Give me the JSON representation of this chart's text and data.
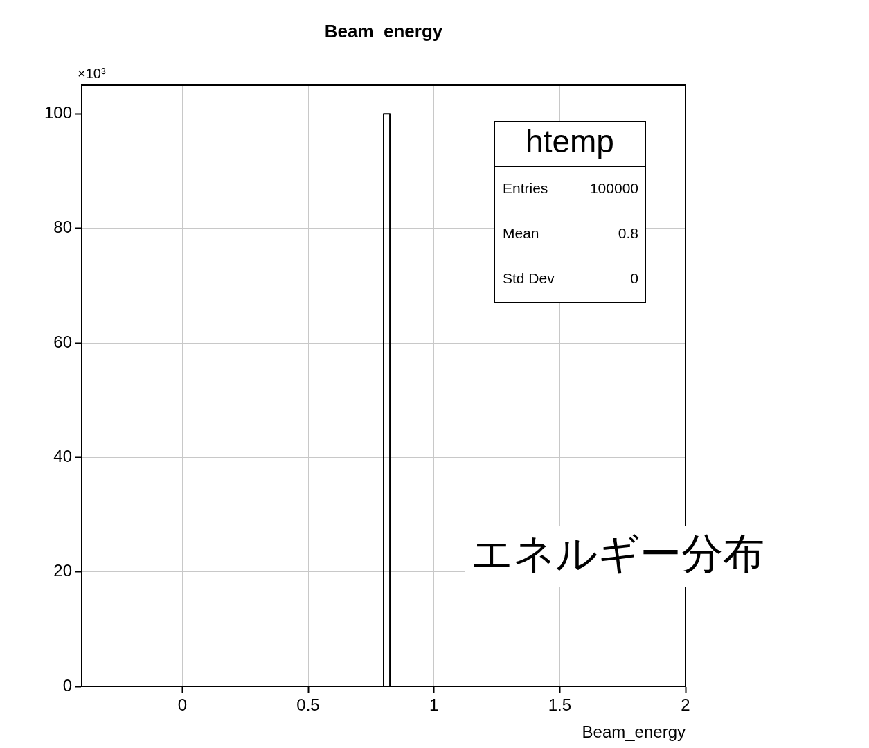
{
  "chart_data": {
    "type": "histogram",
    "title": "Beam_energy",
    "xlabel": "Beam_energy",
    "ylabel": "×10³",
    "bins": [
      0.8,
      0.825
    ],
    "values": [
      100
    ],
    "color": "#000000",
    "xlim": [
      -0.4,
      2
    ],
    "xticks": [
      0,
      0.5,
      1,
      1.5,
      2
    ],
    "ylim": [
      0,
      105
    ],
    "yticks": [
      0,
      20,
      40,
      60,
      80,
      100
    ],
    "grid": true,
    "legend": false,
    "annotations": [
      "htemp",
      "Entries",
      "100000",
      "Mean",
      "0.8",
      "Std Dev",
      "0",
      "エネルギー分布"
    ]
  }
}
